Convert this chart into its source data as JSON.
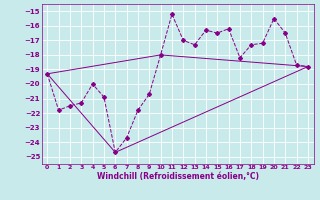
{
  "xlabel": "Windchill (Refroidissement éolien,°C)",
  "bg_color": "#c8eaea",
  "grid_color": "#ffffff",
  "line_color": "#880088",
  "xlim": [
    -0.5,
    23.5
  ],
  "ylim": [
    -25.5,
    -14.5
  ],
  "xticks": [
    0,
    1,
    2,
    3,
    4,
    5,
    6,
    7,
    8,
    9,
    10,
    11,
    12,
    13,
    14,
    15,
    16,
    17,
    18,
    19,
    20,
    21,
    22,
    23
  ],
  "yticks": [
    -25,
    -24,
    -23,
    -22,
    -21,
    -20,
    -19,
    -18,
    -17,
    -16,
    -15
  ],
  "series": [
    [
      0,
      -19.3
    ],
    [
      1,
      -21.8
    ],
    [
      2,
      -21.5
    ],
    [
      3,
      -21.3
    ],
    [
      4,
      -20.0
    ],
    [
      5,
      -20.9
    ],
    [
      6,
      -24.7
    ],
    [
      7,
      -23.7
    ],
    [
      8,
      -21.8
    ],
    [
      9,
      -20.7
    ],
    [
      10,
      -18.0
    ],
    [
      11,
      -15.2
    ],
    [
      12,
      -17.0
    ],
    [
      13,
      -17.3
    ],
    [
      14,
      -16.3
    ],
    [
      15,
      -16.5
    ],
    [
      16,
      -16.2
    ],
    [
      17,
      -18.2
    ],
    [
      18,
      -17.3
    ],
    [
      19,
      -17.2
    ],
    [
      20,
      -15.5
    ],
    [
      21,
      -16.5
    ],
    [
      22,
      -18.7
    ],
    [
      23,
      -18.8
    ]
  ],
  "line_lower": [
    [
      0,
      -19.3
    ],
    [
      6,
      -24.7
    ],
    [
      23,
      -18.8
    ]
  ],
  "line_upper": [
    [
      0,
      -19.3
    ],
    [
      10,
      -18.0
    ],
    [
      23,
      -18.8
    ]
  ]
}
